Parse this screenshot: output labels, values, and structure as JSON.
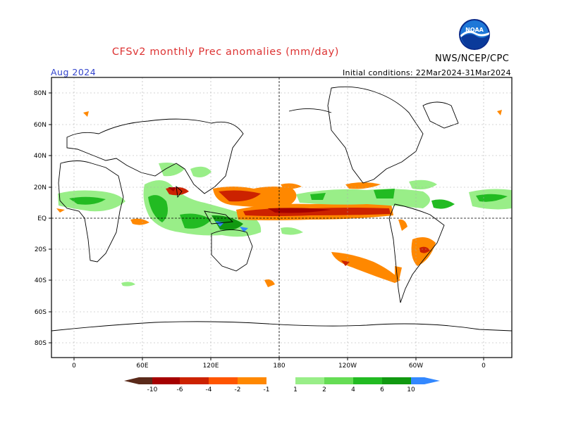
{
  "header": {
    "title": "CFSv2 monthly Prec anomalies (mm/day)",
    "agency": "NWS/NCEP/CPC",
    "logo_text": "NOAA",
    "period": "Aug 2024",
    "initial_conditions": "Initial conditions: 22Mar2024-31Mar2024"
  },
  "axes": {
    "lat_labels": [
      "80N",
      "60N",
      "40N",
      "20N",
      "EQ",
      "20S",
      "40S",
      "60S",
      "80S"
    ],
    "lon_labels": [
      "0",
      "60E",
      "120E",
      "180",
      "120W",
      "60W",
      "0"
    ]
  },
  "legend": {
    "ticks": [
      "-10",
      "-6",
      "-4",
      "-2",
      "-1",
      "1",
      "2",
      "4",
      "6",
      "10"
    ],
    "dry_colors": [
      "#5a2a1a",
      "#a50000",
      "#cc2200",
      "#ff5500",
      "#ff8800",
      "#ffaa00"
    ],
    "wet_colors": [
      "#99ee88",
      "#66dd55",
      "#22bb22",
      "#119911",
      "#007700",
      "#3388ff"
    ]
  },
  "colors": {
    "title": "#dd3333",
    "period": "#3344cc",
    "frame": "#000000",
    "grid": "#aaaaaa"
  }
}
